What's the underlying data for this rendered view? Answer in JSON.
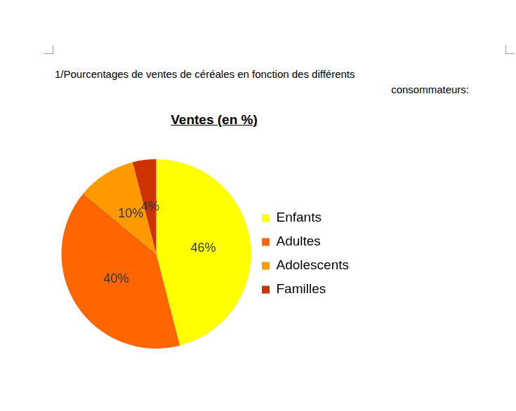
{
  "heading": [
    "1/Pourcentages de ventes de céréales en fonction des différents",
    "consommateurs:"
  ],
  "chart_data": {
    "type": "pie",
    "title": "Ventes (en %)",
    "categories": [
      "Enfants",
      "Adultes",
      "Adolescents",
      "Familles"
    ],
    "values": [
      46,
      40,
      10,
      4
    ],
    "value_labels": [
      "46%",
      "40%",
      "10%",
      "4%"
    ],
    "colors": [
      "#ffff00",
      "#ff6600",
      "#ff9900",
      "#cc3300"
    ],
    "legend": "right",
    "data_labels": true
  }
}
